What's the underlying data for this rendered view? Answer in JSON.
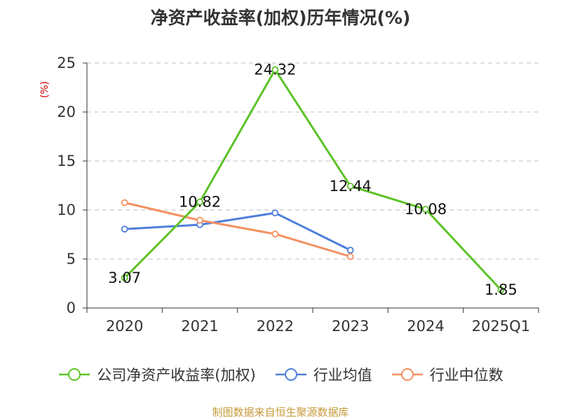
{
  "chart_data": {
    "type": "line",
    "title": "净资产收益率(加权)历年情况(%)",
    "ylabel": "(%)",
    "ylim": [
      0,
      25
    ],
    "yticks": [
      0,
      5,
      10,
      15,
      20,
      25
    ],
    "categories": [
      "2020",
      "2021",
      "2022",
      "2023",
      "2024",
      "2025Q1"
    ],
    "series": [
      {
        "name": "公司净资产收益率(加权)",
        "color": "#5cc327",
        "values": [
          3.07,
          10.82,
          24.32,
          12.44,
          10.08,
          1.85
        ],
        "labels": [
          "3.07",
          "10.82",
          "24.32",
          "12.44",
          "10.08",
          "1.85"
        ],
        "label_side": [
          "below",
          "above",
          "above",
          "above",
          "above",
          "below"
        ]
      },
      {
        "name": "行业均值",
        "color": "#4e7fd9",
        "values": [
          8.05,
          8.5,
          9.7,
          5.9,
          null,
          null
        ]
      },
      {
        "name": "行业中位数",
        "color": "#f39060",
        "values": [
          10.75,
          8.95,
          7.55,
          5.25,
          null,
          null
        ]
      }
    ],
    "grid": "horizontal dashed",
    "legend": "bottom",
    "source": "制图数据来自恒生聚源数据库"
  }
}
